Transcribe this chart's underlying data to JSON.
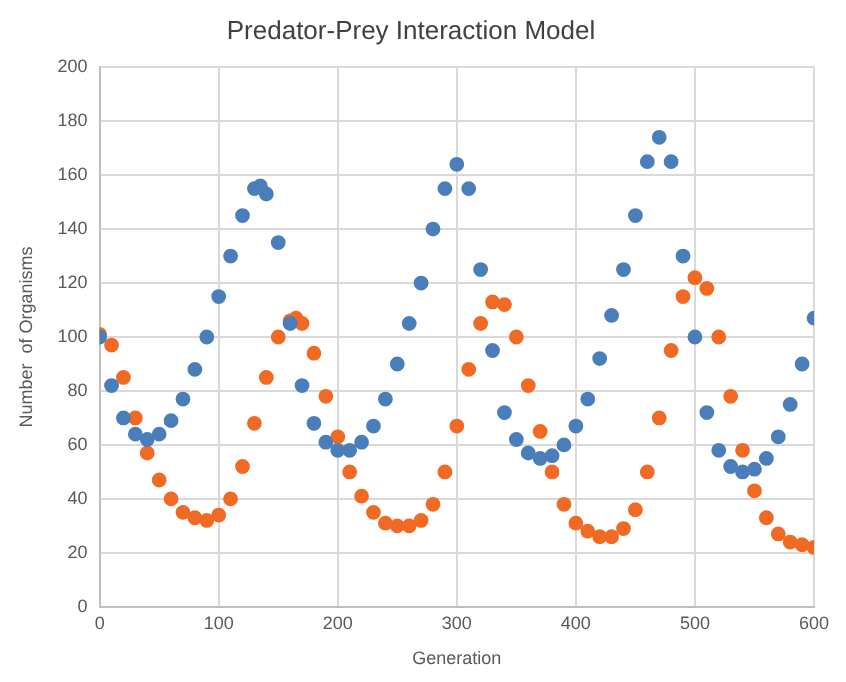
{
  "chart_data": {
    "type": "scatter",
    "title": "Predator-Prey Interaction Model",
    "xlabel": "Generation",
    "ylabel": "Number  of Organisms",
    "xlim": [
      0,
      600
    ],
    "xticks": [
      0,
      100,
      200,
      300,
      400,
      500,
      600
    ],
    "ylim": [
      0,
      200
    ],
    "yticks": [
      0,
      20,
      40,
      60,
      80,
      100,
      120,
      140,
      160,
      180,
      200
    ],
    "grid": true,
    "legend": false,
    "marker": "circle",
    "series": [
      {
        "color": "#4a7ebb",
        "x": [
          0,
          10,
          20,
          30,
          40,
          50,
          60,
          70,
          80,
          90,
          100,
          110,
          120,
          130,
          135,
          140,
          150,
          160,
          170,
          180,
          190,
          200,
          210,
          220,
          230,
          240,
          250,
          260,
          270,
          280,
          290,
          300,
          310,
          320,
          330,
          340,
          350,
          360,
          370,
          380,
          390,
          400,
          410,
          420,
          430,
          440,
          450,
          460,
          470,
          480,
          490,
          500,
          510,
          520,
          530,
          540,
          550,
          560,
          570,
          580,
          590,
          600
        ],
        "values": [
          100,
          82,
          70,
          64,
          62,
          64,
          69,
          77,
          88,
          100,
          115,
          130,
          145,
          155,
          156,
          153,
          135,
          105,
          82,
          68,
          61,
          58,
          58,
          61,
          67,
          77,
          90,
          105,
          120,
          140,
          155,
          164,
          155,
          125,
          95,
          72,
          62,
          57,
          55,
          56,
          60,
          67,
          77,
          92,
          108,
          125,
          145,
          165,
          174,
          165,
          130,
          100,
          72,
          58,
          52,
          50,
          51,
          55,
          63,
          75,
          90,
          107
        ]
      },
      {
        "color": "#f06a24",
        "x": [
          0,
          10,
          20,
          30,
          40,
          50,
          60,
          70,
          80,
          90,
          100,
          110,
          120,
          130,
          140,
          150,
          160,
          165,
          170,
          180,
          190,
          200,
          210,
          220,
          230,
          240,
          250,
          260,
          270,
          280,
          290,
          300,
          310,
          320,
          330,
          340,
          350,
          360,
          370,
          380,
          390,
          400,
          410,
          420,
          430,
          440,
          450,
          460,
          470,
          480,
          490,
          500,
          510,
          520,
          530,
          540,
          550,
          560,
          570,
          580,
          590,
          600
        ],
        "values": [
          101,
          97,
          85,
          70,
          57,
          47,
          40,
          35,
          33,
          32,
          34,
          40,
          52,
          68,
          85,
          100,
          106,
          107,
          105,
          94,
          78,
          63,
          50,
          41,
          35,
          31,
          30,
          30,
          32,
          38,
          50,
          67,
          88,
          105,
          113,
          112,
          100,
          82,
          65,
          50,
          38,
          31,
          28,
          26,
          26,
          29,
          36,
          50,
          70,
          95,
          115,
          122,
          118,
          100,
          78,
          58,
          43,
          33,
          27,
          24,
          23,
          22
        ]
      }
    ]
  }
}
